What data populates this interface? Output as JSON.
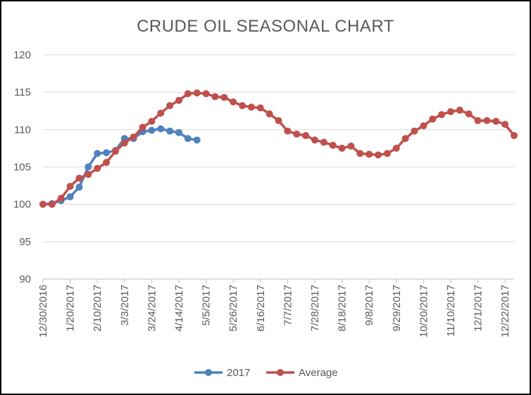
{
  "chart_data": {
    "type": "line",
    "title": "CRUDE OIL SEASONAL CHART",
    "xlabel": "",
    "ylabel": "",
    "ylim": [
      90,
      120
    ],
    "yticks": [
      90,
      95,
      100,
      105,
      110,
      115,
      120
    ],
    "xlim": [
      "12/30/2016",
      "12/29/2017"
    ],
    "xticks": [
      "12/30/2016",
      "1/20/2017",
      "2/10/2017",
      "3/3/2017",
      "3/24/2017",
      "4/14/2017",
      "5/5/2017",
      "5/26/2017",
      "6/16/2017",
      "7/7/2017",
      "7/28/2017",
      "8/18/2017",
      "9/8/2017",
      "9/29/2017",
      "10/20/2017",
      "11/10/2017",
      "12/1/2017",
      "12/22/2017"
    ],
    "grid": "horizontal",
    "legend": "bottom",
    "series": [
      {
        "name": "2017",
        "color": "#4f81bd",
        "x": [
          "12/30/2016",
          "1/6/2017",
          "1/13/2017",
          "1/20/2017",
          "1/27/2017",
          "2/3/2017",
          "2/10/2017",
          "2/17/2017",
          "2/24/2017",
          "3/3/2017",
          "3/10/2017",
          "3/17/2017",
          "3/24/2017",
          "3/31/2017",
          "4/7/2017",
          "4/14/2017",
          "4/21/2017",
          "4/28/2017"
        ],
        "values": [
          100.0,
          100.1,
          100.5,
          101.0,
          102.3,
          105.0,
          106.8,
          106.9,
          107.2,
          108.8,
          108.8,
          109.7,
          109.9,
          110.1,
          109.8,
          109.6,
          108.8,
          108.6
        ]
      },
      {
        "name": "Average",
        "color": "#c0504d",
        "x": [
          "12/30/2016",
          "1/6/2017",
          "1/13/2017",
          "1/20/2017",
          "1/27/2017",
          "2/3/2017",
          "2/10/2017",
          "2/17/2017",
          "2/24/2017",
          "3/3/2017",
          "3/10/2017",
          "3/17/2017",
          "3/24/2017",
          "3/31/2017",
          "4/7/2017",
          "4/14/2017",
          "4/21/2017",
          "4/28/2017",
          "5/5/2017",
          "5/12/2017",
          "5/19/2017",
          "5/26/2017",
          "6/2/2017",
          "6/9/2017",
          "6/16/2017",
          "6/23/2017",
          "6/30/2017",
          "7/7/2017",
          "7/14/2017",
          "7/21/2017",
          "7/28/2017",
          "8/4/2017",
          "8/11/2017",
          "8/18/2017",
          "8/25/2017",
          "9/1/2017",
          "9/8/2017",
          "9/15/2017",
          "9/22/2017",
          "9/29/2017",
          "10/6/2017",
          "10/13/2017",
          "10/20/2017",
          "10/27/2017",
          "11/3/2017",
          "11/10/2017",
          "11/17/2017",
          "11/24/2017",
          "12/1/2017",
          "12/8/2017",
          "12/15/2017",
          "12/22/2017",
          "12/29/2017"
        ],
        "values": [
          100.0,
          100.0,
          100.8,
          102.4,
          103.5,
          104.0,
          104.8,
          105.6,
          107.1,
          108.2,
          109.0,
          110.3,
          111.1,
          112.2,
          113.2,
          113.9,
          114.8,
          114.9,
          114.8,
          114.4,
          114.3,
          113.7,
          113.2,
          113.0,
          112.9,
          112.1,
          111.2,
          109.8,
          109.4,
          109.2,
          108.6,
          108.3,
          107.9,
          107.5,
          107.8,
          106.8,
          106.7,
          106.6,
          106.8,
          107.5,
          108.8,
          109.8,
          110.5,
          111.4,
          112.0,
          112.4,
          112.6,
          112.1,
          111.2,
          111.2,
          111.1,
          110.7,
          109.2
        ]
      }
    ]
  }
}
